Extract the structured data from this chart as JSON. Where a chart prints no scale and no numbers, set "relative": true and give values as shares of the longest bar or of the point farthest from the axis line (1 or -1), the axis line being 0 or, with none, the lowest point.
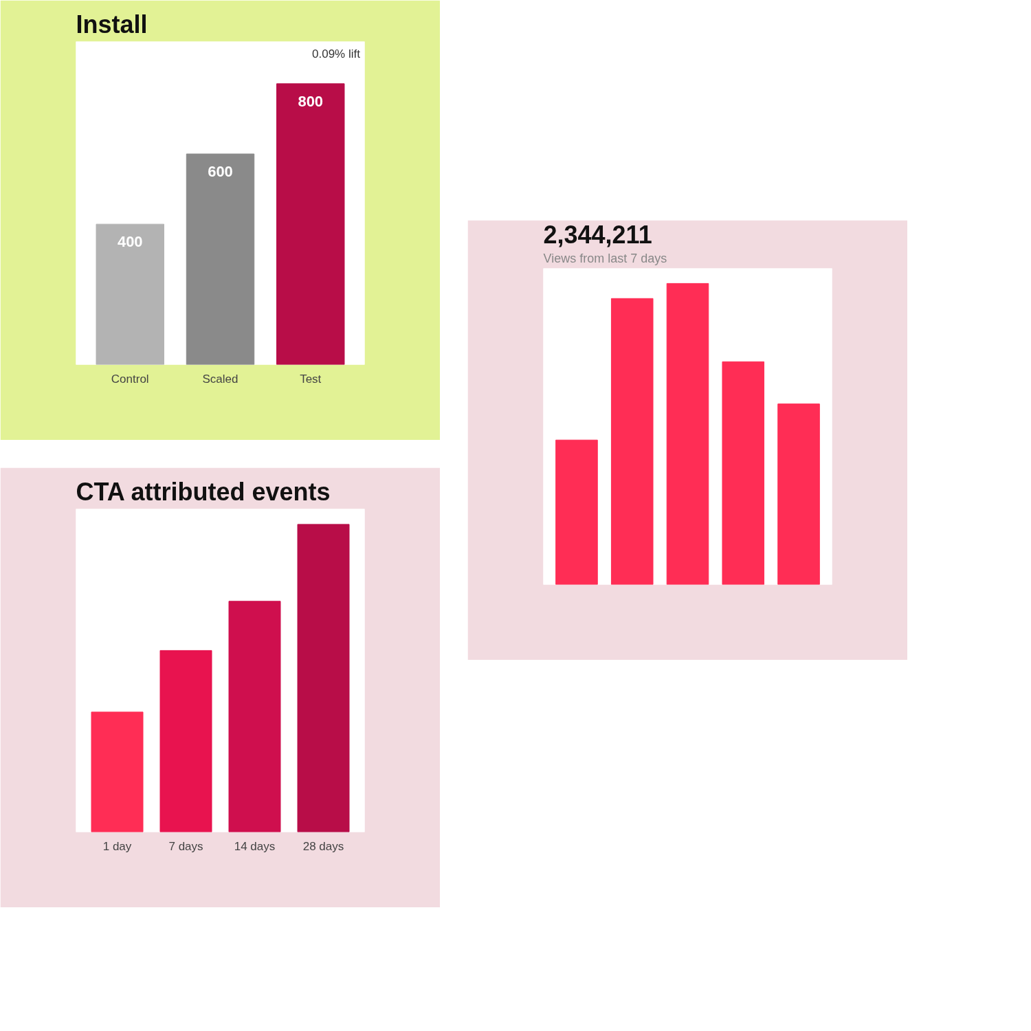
{
  "chart_data": [
    {
      "type": "bar",
      "title": "Install",
      "annotations": [
        "0.09% lift"
      ],
      "categories": [
        "Control",
        "Scaled",
        "Test"
      ],
      "values": [
        400,
        600,
        800
      ],
      "colors": [
        "#b3b3b3",
        "#8a8a8a",
        "#b80d48"
      ],
      "data_labels": true
    },
    {
      "type": "bar",
      "title": "2,344,211",
      "subtitle": "Views from last 7 days",
      "categories": [
        null,
        null,
        null,
        null,
        null
      ],
      "values": [
        0.48,
        0.95,
        1,
        0.74,
        0.6
      ],
      "colors": [
        "#ff2d55",
        "#ff2d55",
        "#ff2d55",
        "#ff2d55",
        "#ff2d55"
      ],
      "relative": true
    },
    {
      "type": "bar",
      "title": "CTA attributed events",
      "categories": [
        "1 day",
        "7 days",
        "14 days",
        "28 days"
      ],
      "values": [
        0.39,
        0.59,
        0.75,
        1
      ],
      "colors": [
        "#ff2d55",
        "#e8134f",
        "#cf0f4e",
        "#b80d48"
      ],
      "relative": true
    }
  ]
}
